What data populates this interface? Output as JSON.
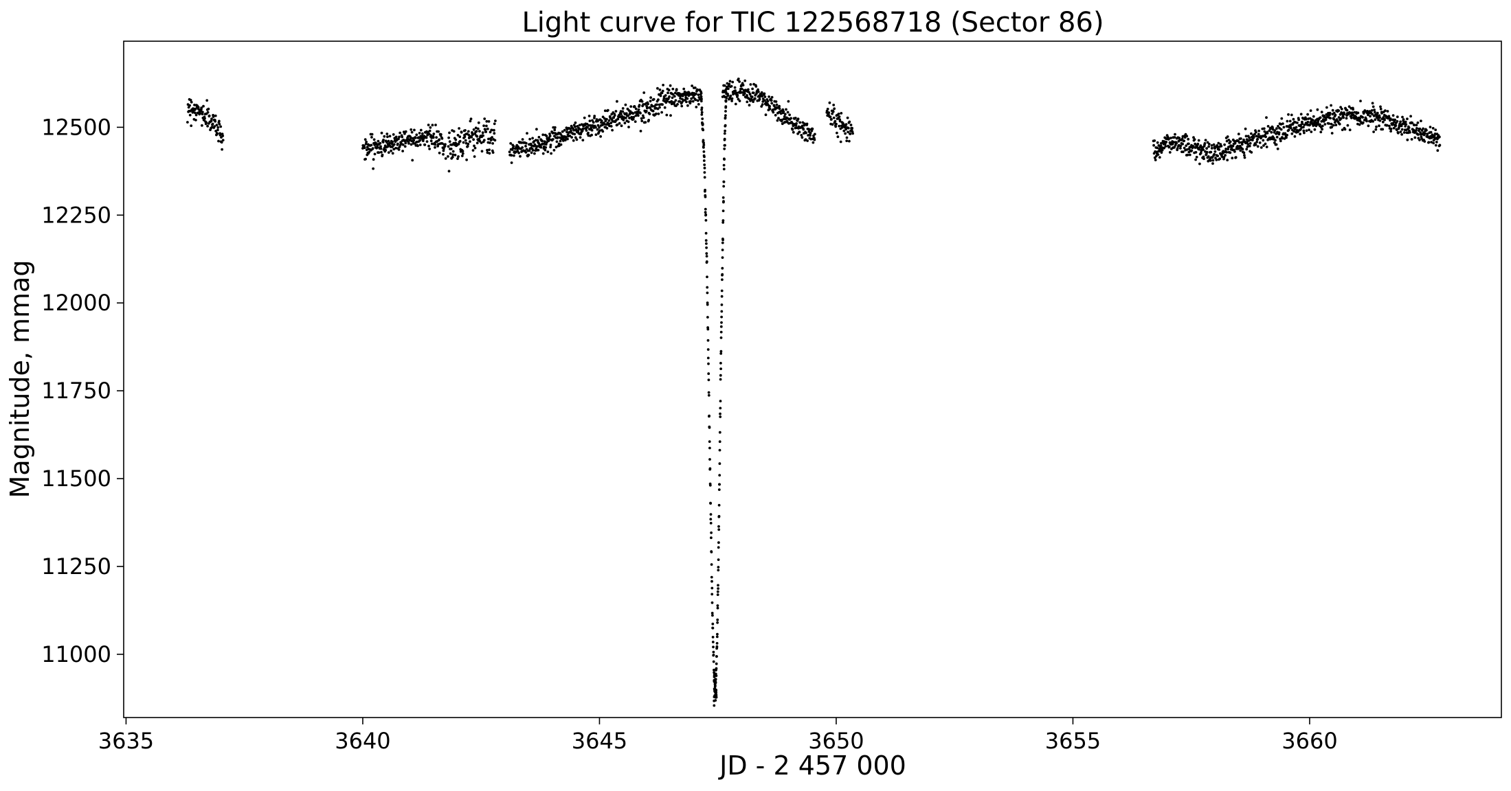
{
  "chart_data": {
    "type": "scatter",
    "title": "Light curve for TIC 122568718 (Sector 86)",
    "xlabel": "JD - 2 457 000",
    "ylabel": "Magnitude, mmag",
    "xlim": [
      3634.95,
      3664.05
    ],
    "ylim": [
      10820,
      12745
    ],
    "xticks": [
      3635,
      3640,
      3645,
      3650,
      3655,
      3660
    ],
    "xtick_labels": [
      "3635",
      "3640",
      "3645",
      "3650",
      "3655",
      "3660"
    ],
    "yticks": [
      11000,
      11250,
      11500,
      11750,
      12000,
      12250,
      12500
    ],
    "ytick_labels": [
      "11000",
      "11250",
      "11500",
      "11750",
      "12000",
      "12250",
      "12500"
    ],
    "grid": false,
    "marker_color": "#000000",
    "series": [
      {
        "segments": [
          {
            "points": [
              [
                3636.3,
                12560
              ],
              [
                3636.6,
                12540
              ],
              [
                3636.9,
                12505
              ],
              [
                3637.05,
                12470
              ]
            ],
            "scatter": 30
          },
          {
            "points": [
              [
                3640.0,
                12440
              ],
              [
                3640.5,
                12450
              ],
              [
                3641.0,
                12470
              ],
              [
                3641.4,
                12475
              ],
              [
                3641.7,
                12450
              ],
              [
                3641.75,
                12430
              ]
            ],
            "scatter": 28
          },
          {
            "points": [
              [
                3641.8,
                12440
              ],
              [
                3642.2,
                12470
              ],
              [
                3642.6,
                12480
              ],
              [
                3642.8,
                12460
              ]
            ],
            "scatter": 45
          },
          {
            "points": [
              [
                3643.1,
                12430
              ],
              [
                3643.5,
                12445
              ],
              [
                3644.0,
                12465
              ],
              [
                3644.5,
                12490
              ],
              [
                3645.0,
                12510
              ],
              [
                3645.5,
                12530
              ],
              [
                3646.0,
                12555
              ],
              [
                3646.5,
                12580
              ],
              [
                3647.0,
                12590
              ],
              [
                3647.15,
                12590
              ]
            ],
            "scatter": 28
          },
          {
            "points": [
              [
                3647.6,
                12600
              ],
              [
                3648.0,
                12600
              ],
              [
                3648.4,
                12590
              ],
              [
                3648.8,
                12540
              ],
              [
                3649.2,
                12500
              ],
              [
                3649.55,
                12475
              ]
            ],
            "scatter": 28
          },
          {
            "points": [
              [
                3649.8,
                12540
              ],
              [
                3650.1,
                12510
              ],
              [
                3650.35,
                12490
              ]
            ],
            "scatter": 30
          },
          {
            "points": [
              [
                3656.7,
                12440
              ],
              [
                3657.2,
                12460
              ],
              [
                3657.6,
                12440
              ],
              [
                3658.0,
                12425
              ],
              [
                3658.5,
                12450
              ],
              [
                3659.0,
                12475
              ],
              [
                3659.5,
                12495
              ],
              [
                3660.0,
                12510
              ],
              [
                3660.5,
                12525
              ],
              [
                3661.0,
                12535
              ],
              [
                3661.5,
                12530
              ],
              [
                3662.0,
                12500
              ],
              [
                3662.5,
                12480
              ],
              [
                3662.75,
                12465
              ]
            ],
            "scatter": 28
          }
        ],
        "eclipse": {
          "ingress": [
            [
              3647.15,
              12580
            ],
            [
              3647.22,
              12380
            ],
            [
              3647.27,
              12100
            ],
            [
              3647.31,
              11750
            ],
            [
              3647.35,
              11400
            ],
            [
              3647.38,
              11150
            ],
            [
              3647.41,
              10980
            ],
            [
              3647.44,
              10900
            ]
          ],
          "egress": [
            [
              3647.44,
              10900
            ],
            [
              3647.47,
              10960
            ],
            [
              3647.5,
              11150
            ],
            [
              3647.53,
              11450
            ],
            [
              3647.56,
              11800
            ],
            [
              3647.6,
              12150
            ],
            [
              3647.64,
              12450
            ],
            [
              3647.68,
              12600
            ]
          ]
        }
      }
    ]
  }
}
